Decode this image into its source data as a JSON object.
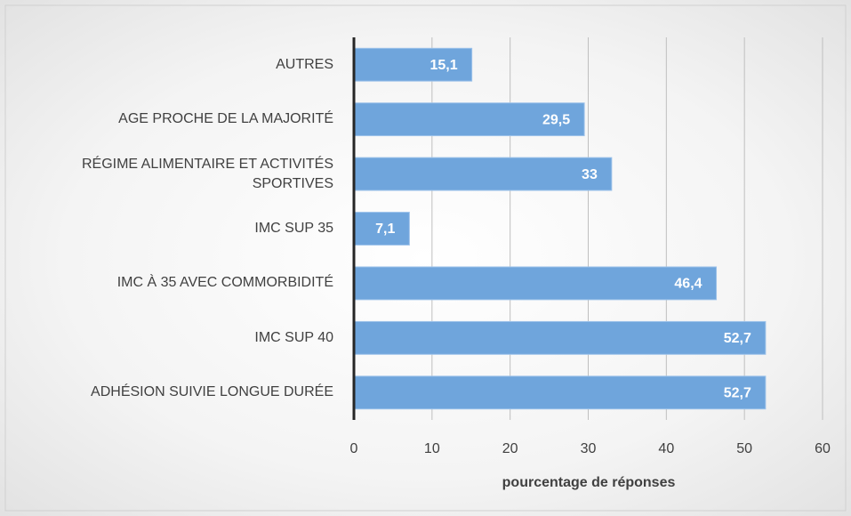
{
  "chart_data": {
    "type": "bar",
    "orientation": "horizontal",
    "xlabel": "pourcentage de réponses",
    "categories": [
      "AUTRES",
      "AGE PROCHE DE LA MAJORITÉ",
      "RÉGIME ALIMENTAIRE ET ACTIVITÉS SPORTIVES",
      "IMC SUP 35",
      "IMC À 35 AVEC COMMORBIDITÉ",
      "IMC SUP 40",
      "ADHÉSION SUIVIE LONGUE DURÉE"
    ],
    "values": [
      15.1,
      29.5,
      33,
      7.1,
      46.4,
      52.7,
      52.7
    ],
    "value_labels": [
      "15,1",
      "29,5",
      "33",
      "7,1",
      "46,4",
      "52,7",
      "52,7"
    ],
    "color": "#6fa5dc",
    "xlim": [
      0,
      60
    ],
    "xticks": [
      0,
      10,
      20,
      30,
      40,
      50,
      60
    ],
    "grid": true
  }
}
